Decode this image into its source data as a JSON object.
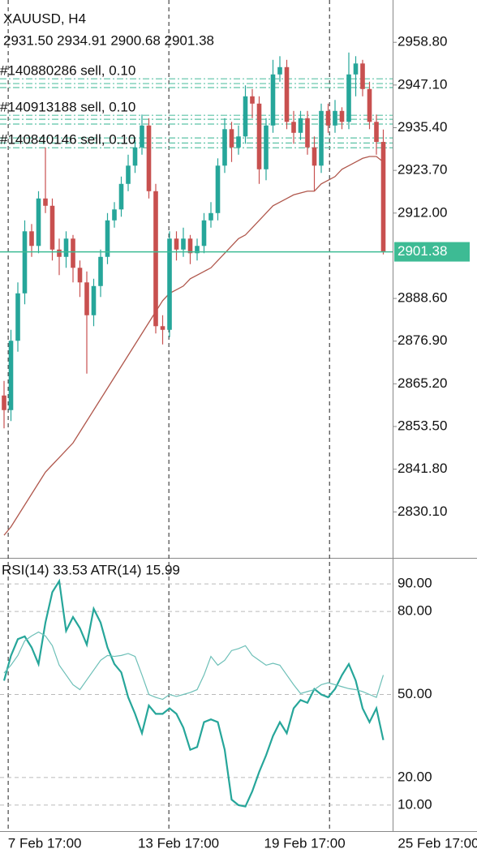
{
  "chart_data": {
    "type": "candlestick",
    "title": "XAUUSD, H4",
    "subtitle": "2931.50 2934.91 2900.68 2901.38",
    "up_color": "#26a69a",
    "down_color": "#c8504f",
    "open": [
      2862,
      2858,
      2877,
      2890,
      2907,
      2903,
      2916,
      2914,
      2902,
      2900,
      2905,
      2897,
      2893,
      2884,
      2892,
      2900,
      2910,
      2913,
      2920,
      2925,
      2930,
      2936,
      2918,
      2881,
      2880,
      2905,
      2902,
      2905,
      2901,
      2903,
      2910,
      2912,
      2925,
      2935,
      2930,
      2933,
      2944,
      2942,
      2924,
      2936,
      2950,
      2952,
      2937,
      2934,
      2938,
      2930,
      2925,
      2940,
      2936,
      2940,
      2937,
      2950,
      2953,
      2946,
      2937,
      2931.5
    ],
    "high": [
      2866,
      2880,
      2893,
      2910,
      2909,
      2918,
      2930,
      2916,
      2905,
      2907,
      2906,
      2899,
      2896,
      2894,
      2902,
      2912,
      2915,
      2922,
      2928,
      2932,
      2939,
      2938,
      2920,
      2884,
      2907,
      2907,
      2908,
      2906,
      2905,
      2912,
      2915,
      2927,
      2938,
      2937,
      2936,
      2947,
      2946,
      2944,
      2938,
      2954,
      2955,
      2954,
      2940,
      2940,
      2940,
      2933,
      2942,
      2942,
      2943,
      2941,
      2956,
      2955,
      2954,
      2948,
      2939,
      2934.91
    ],
    "low": [
      2853,
      2855,
      2874,
      2887,
      2900,
      2901,
      2912,
      2899,
      2895,
      2897,
      2893,
      2889,
      2868,
      2881,
      2889,
      2898,
      2908,
      2911,
      2918,
      2923,
      2928,
      2916,
      2879,
      2876,
      2878,
      2899,
      2900,
      2898,
      2899,
      2901,
      2908,
      2910,
      2923,
      2926,
      2928,
      2931,
      2938,
      2920,
      2921,
      2934,
      2948,
      2935,
      2931,
      2932,
      2928,
      2918,
      2923,
      2934,
      2934,
      2935,
      2935,
      2944,
      2944,
      2935,
      2928,
      2900.68
    ],
    "close": [
      2858,
      2877,
      2890,
      2907,
      2903,
      2916,
      2914,
      2902,
      2900,
      2905,
      2897,
      2893,
      2884,
      2892,
      2900,
      2910,
      2913,
      2920,
      2925,
      2930,
      2936,
      2918,
      2881,
      2880,
      2905,
      2902,
      2905,
      2901,
      2903,
      2910,
      2912,
      2925,
      2935,
      2930,
      2933,
      2944,
      2942,
      2924,
      2936,
      2950,
      2952,
      2937,
      2934,
      2938,
      2930,
      2925,
      2940,
      2936,
      2940,
      2937,
      2950,
      2953,
      2946,
      2937,
      2931.5,
      2901.38
    ],
    "ma": {
      "color": "#b0574c",
      "values": [
        2823.7,
        2826,
        2829,
        2832,
        2835,
        2838,
        2841,
        2843,
        2845,
        2847,
        2849,
        2852,
        2855,
        2858,
        2861,
        2864,
        2867,
        2870,
        2873,
        2876,
        2879,
        2882,
        2885,
        2888,
        2890,
        2891,
        2892,
        2894,
        2895,
        2896,
        2897,
        2899,
        2901,
        2903,
        2905,
        2906,
        2908,
        2910,
        2912,
        2914,
        2915,
        2916,
        2917,
        2917.5,
        2918,
        2918,
        2920,
        2921,
        2922,
        2924,
        2925,
        2926,
        2927,
        2927.5,
        2927.5,
        2926
      ]
    },
    "ylim": [
      2817.5,
      2970.4
    ],
    "yticks": [
      {
        "value": 2958.8,
        "label": "2958.80"
      },
      {
        "value": 2947.1,
        "label": "2947.10"
      },
      {
        "value": 2935.4,
        "label": "2935.40"
      },
      {
        "value": 2923.7,
        "label": "2923.70"
      },
      {
        "value": 2912,
        "label": "2912.00"
      },
      {
        "value": 2888.6,
        "label": "2888.60"
      },
      {
        "value": 2876.9,
        "label": "2876.90"
      },
      {
        "value": 2865.2,
        "label": "2865.20"
      },
      {
        "value": 2853.5,
        "label": "2853.50"
      },
      {
        "value": 2841.8,
        "label": "2841.80"
      },
      {
        "value": 2830.1,
        "label": "2830.10"
      }
    ],
    "xticks": [
      {
        "value": 5.9,
        "label": "7 Feb 17:00"
      },
      {
        "value": 25.3,
        "label": "13 Feb 17:00"
      },
      {
        "value": 43.6,
        "label": "19 Feb 17:00"
      },
      {
        "value": 63,
        "label": "25 Feb 17:00"
      }
    ],
    "vlines": [
      0.6,
      23.9,
      47.2
    ],
    "current_price": 2901.38,
    "current_color": "#3dbb94",
    "order_color": "#5cc3a6",
    "order_lines": [
      2948.8,
      2947.5,
      2946.4,
      2938.8,
      2937.7,
      2936.4,
      2932.6,
      2931.2,
      2929.9
    ],
    "order_labels": [
      {
        "text": "#140880286 sell, 0.10",
        "price": 2948.8
      },
      {
        "text": "#140913188 sell, 0.10",
        "price": 2938.8
      },
      {
        "text": "#140840146 sell, 0.10",
        "price": 2929.9
      }
    ],
    "indicator": {
      "title": "RSI(14) 33.53 ATR(14) 15.99",
      "ylim": [
        0.6,
        99.4
      ],
      "yticks": [
        {
          "value": 90,
          "label": "90.00"
        },
        {
          "value": 80,
          "label": "80.00"
        },
        {
          "value": 50,
          "label": "50.00"
        },
        {
          "value": 20,
          "label": "20.00"
        },
        {
          "value": 10,
          "label": "10.00"
        }
      ],
      "y2lim": [
        0,
        28
      ],
      "series": [
        {
          "name": "RSI(14)",
          "color": "#26a69a",
          "values": [
            55,
            64,
            70,
            71,
            67,
            61,
            76,
            87,
            91,
            73,
            78,
            74,
            68,
            81,
            76,
            67,
            61,
            58,
            49,
            43,
            36,
            46,
            43,
            43,
            45,
            43,
            38,
            30,
            31,
            40,
            41,
            40,
            30,
            12,
            10,
            9.5,
            15,
            22,
            28,
            35,
            40,
            36,
            45,
            48,
            47,
            52,
            50,
            49,
            52,
            57,
            61,
            55,
            45,
            40,
            45,
            33.53
          ]
        },
        {
          "name": "ATR(14)",
          "color": "#6cbfb7",
          "axis": "y2",
          "values": [
            16.2,
            17,
            18,
            19.5,
            20,
            20.4,
            20,
            19,
            17,
            16,
            15,
            14.5,
            15.5,
            16.5,
            17.5,
            18,
            17.9,
            18,
            18.2,
            17.9,
            16,
            14,
            13.7,
            13.5,
            14,
            13.8,
            14,
            14.2,
            14.5,
            16,
            17.9,
            17,
            17.5,
            18.5,
            18.7,
            19,
            18,
            17.5,
            17,
            17.2,
            17,
            16,
            15,
            14.1,
            14.3,
            14.5,
            15,
            15.2,
            15,
            14.8,
            14.6,
            14.5,
            14.3,
            14,
            13.7,
            15.99
          ]
        }
      ]
    }
  }
}
